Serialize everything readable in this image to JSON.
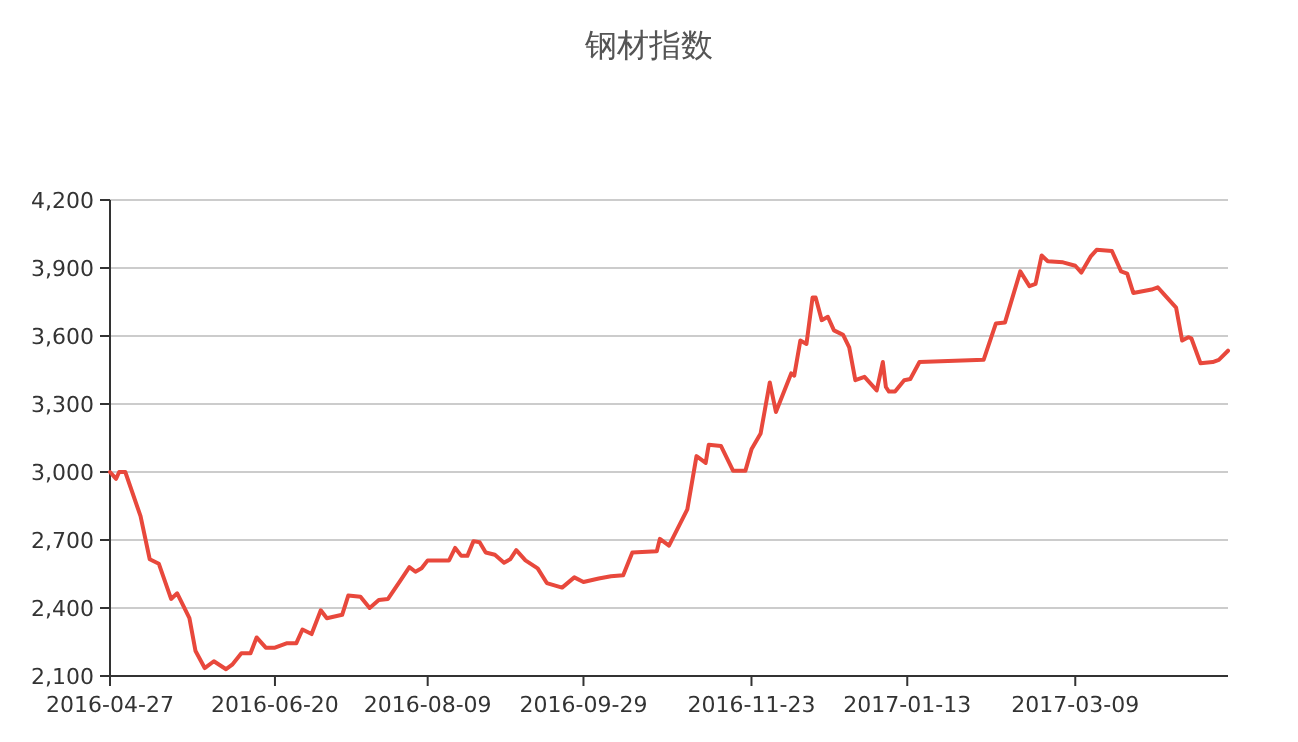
{
  "chart_data": {
    "type": "line",
    "title": "钢材指数",
    "x": [
      "2016-04-27",
      "2016-04-29",
      "2016-04-30",
      "2016-05-02",
      "2016-05-07",
      "2016-05-10",
      "2016-05-13",
      "2016-05-17",
      "2016-05-19",
      "2016-05-23",
      "2016-05-25",
      "2016-05-28",
      "2016-05-31",
      "2016-06-04",
      "2016-06-06",
      "2016-06-09",
      "2016-06-12",
      "2016-06-14",
      "2016-06-17",
      "2016-06-20",
      "2016-06-24",
      "2016-06-27",
      "2016-06-29",
      "2016-07-02",
      "2016-07-05",
      "2016-07-07",
      "2016-07-12",
      "2016-07-14",
      "2016-07-18",
      "2016-07-21",
      "2016-07-24",
      "2016-07-27",
      "2016-07-31",
      "2016-08-03",
      "2016-08-05",
      "2016-08-07",
      "2016-08-09",
      "2016-08-16",
      "2016-08-18",
      "2016-08-20",
      "2016-08-22",
      "2016-08-24",
      "2016-08-26",
      "2016-08-28",
      "2016-08-31",
      "2016-09-03",
      "2016-09-05",
      "2016-09-07",
      "2016-09-10",
      "2016-09-14",
      "2016-09-17",
      "2016-09-22",
      "2016-09-26",
      "2016-09-29",
      "2016-10-04",
      "2016-10-08",
      "2016-10-12",
      "2016-10-15",
      "2016-10-23",
      "2016-10-24",
      "2016-10-27",
      "2016-11-02",
      "2016-11-05",
      "2016-11-08",
      "2016-11-09",
      "2016-11-13",
      "2016-11-17",
      "2016-11-21",
      "2016-11-23",
      "2016-11-26",
      "2016-11-29",
      "2016-12-01",
      "2016-12-06",
      "2016-12-07",
      "2016-12-09",
      "2016-12-11",
      "2016-12-13",
      "2016-12-14",
      "2016-12-16",
      "2016-12-18",
      "2016-12-20",
      "2016-12-23",
      "2016-12-25",
      "2016-12-27",
      "2016-12-30",
      "2017-01-01",
      "2017-01-03",
      "2017-01-05",
      "2017-01-06",
      "2017-01-07",
      "2017-01-09",
      "2017-01-12",
      "2017-01-14",
      "2017-01-17",
      "2017-02-07",
      "2017-02-11",
      "2017-02-14",
      "2017-02-19",
      "2017-02-22",
      "2017-02-24",
      "2017-02-26",
      "2017-02-28",
      "2017-03-05",
      "2017-03-09",
      "2017-03-11",
      "2017-03-14",
      "2017-03-16",
      "2017-03-21",
      "2017-03-24",
      "2017-03-26",
      "2017-03-28",
      "2017-04-03",
      "2017-04-05",
      "2017-04-07",
      "2017-04-11",
      "2017-04-13",
      "2017-04-15",
      "2017-04-16",
      "2017-04-19",
      "2017-04-23",
      "2017-04-25",
      "2017-04-28"
    ],
    "series": [
      {
        "color": "#e8483c",
        "values": [
          3000,
          2970,
          3000,
          3000,
          2805,
          2615,
          2595,
          2440,
          2465,
          2355,
          2210,
          2135,
          2165,
          2130,
          2150,
          2200,
          2200,
          2270,
          2225,
          2225,
          2245,
          2245,
          2305,
          2285,
          2390,
          2355,
          2370,
          2455,
          2450,
          2400,
          2435,
          2440,
          2520,
          2580,
          2560,
          2575,
          2610,
          2610,
          2665,
          2630,
          2630,
          2695,
          2690,
          2645,
          2635,
          2600,
          2615,
          2655,
          2610,
          2575,
          2510,
          2490,
          2535,
          2515,
          2530,
          2540,
          2545,
          2645,
          2650,
          2705,
          2675,
          2835,
          3070,
          3040,
          3120,
          3115,
          3005,
          3005,
          3100,
          3170,
          3395,
          3265,
          3435,
          3425,
          3580,
          3565,
          3770,
          3770,
          3670,
          3685,
          3625,
          3605,
          3550,
          3405,
          3420,
          3390,
          3360,
          3485,
          3375,
          3355,
          3355,
          3405,
          3410,
          3485,
          3495,
          3655,
          3660,
          3885,
          3820,
          3830,
          3955,
          3930,
          3925,
          3910,
          3880,
          3950,
          3980,
          3975,
          3885,
          3875,
          3790,
          3805,
          3815,
          3785,
          3725,
          3580,
          3595,
          3590,
          3480,
          3485,
          3495,
          3535
        ]
      }
    ],
    "xlim": [
      "2016-04-27",
      "2017-04-28"
    ],
    "xticks": [
      "2016-04-27",
      "2016-06-20",
      "2016-08-09",
      "2016-09-29",
      "2016-11-23",
      "2017-01-13",
      "2017-03-09"
    ],
    "ylim": [
      2100,
      4200
    ],
    "yticks": [
      {
        "value": 2100,
        "label": "2,100"
      },
      {
        "value": 2400,
        "label": "2,400"
      },
      {
        "value": 2700,
        "label": "2,700"
      },
      {
        "value": 3000,
        "label": "3,000"
      },
      {
        "value": 3300,
        "label": "3,300"
      },
      {
        "value": 3600,
        "label": "3,600"
      },
      {
        "value": 3900,
        "label": "3,900"
      },
      {
        "value": 4200,
        "label": "4,200"
      }
    ],
    "grid": "y"
  }
}
